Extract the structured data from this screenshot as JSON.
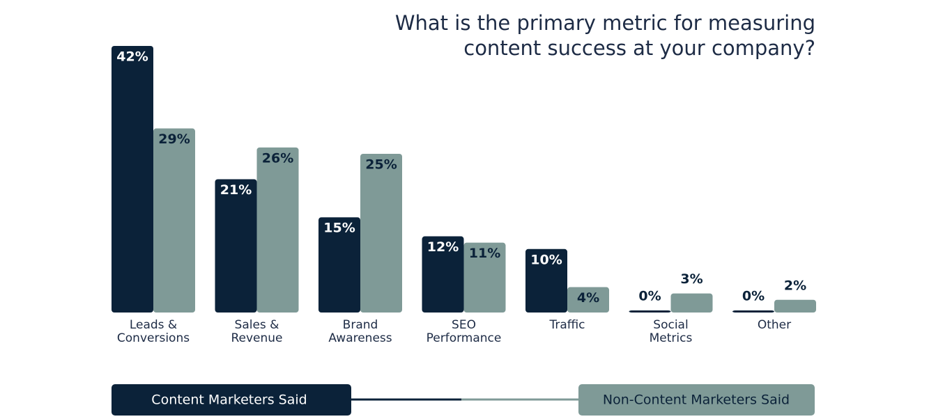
{
  "chart_data": {
    "type": "bar",
    "title": "What is the primary metric for measuring\ncontent success at your company?",
    "categories": [
      "Leads &\nConversions",
      "Sales &\nRevenue",
      "Brand\nAwareness",
      "SEO\nPerformance",
      "Traffic",
      "Social\nMetrics",
      "Other"
    ],
    "series": [
      {
        "name": "Content Marketers Said",
        "color": "#0b2239",
        "values": [
          42,
          21,
          15,
          12,
          10,
          0,
          0
        ],
        "value_labels": [
          "42%",
          "21%",
          "15%",
          "12%",
          "10%",
          "0%",
          "0%"
        ]
      },
      {
        "name": "Non-Content Marketers Said",
        "color": "#7f9a97",
        "values": [
          29,
          26,
          25,
          11,
          4,
          3,
          2
        ],
        "value_labels": [
          "29%",
          "26%",
          "25%",
          "11%",
          "4%",
          "3%",
          "2%"
        ]
      }
    ]
  }
}
